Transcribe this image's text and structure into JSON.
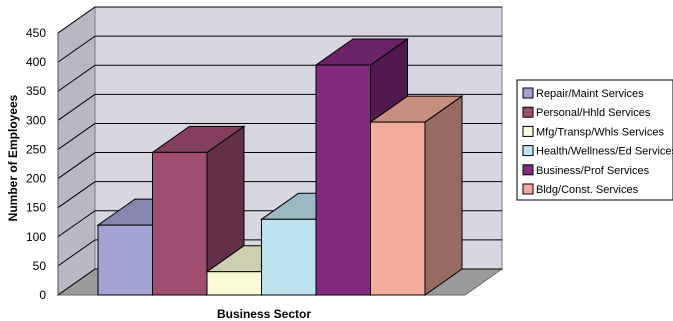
{
  "chart_data": {
    "type": "bar",
    "three_d": true,
    "xlabel": "Business Sector",
    "ylabel": "Number of Employees",
    "ylim": [
      0,
      450
    ],
    "yticks": [
      0,
      50,
      100,
      150,
      200,
      250,
      300,
      350,
      400,
      450
    ],
    "grid": true,
    "legend_position": "right",
    "series": [
      {
        "name": "Repair/Maint Services",
        "value": 120,
        "color": "#a4a4d4"
      },
      {
        "name": "Personal/Hhld Services",
        "value": 245,
        "color": "#a04d72"
      },
      {
        "name": "Mfg/Transp/Whls Services",
        "value": 40,
        "color": "#fbfbd9"
      },
      {
        "name": "Health/Wellness/Ed Services",
        "value": 130,
        "color": "#bee2ee"
      },
      {
        "name": "Business/Prof Services",
        "value": 395,
        "color": "#83297e"
      },
      {
        "name": "Bldg/Const. Services",
        "value": 297,
        "color": "#f4ac9d"
      }
    ]
  }
}
